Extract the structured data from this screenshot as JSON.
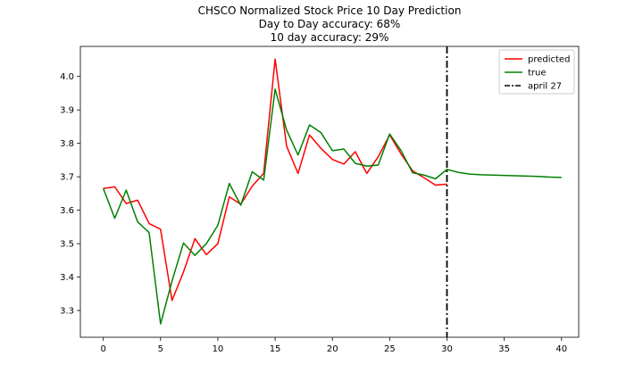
{
  "chart_data": {
    "type": "line",
    "title_lines": [
      "CHSCO Normalized Stock Price 10 Day Prediction",
      "Day to Day accuracy: 68%",
      "10 day accuracy: 29%"
    ],
    "xlabel": "",
    "ylabel": "",
    "xlim": [
      -2,
      41.5
    ],
    "ylim": [
      3.22,
      4.09
    ],
    "x_ticks": [
      0,
      5,
      10,
      15,
      20,
      25,
      30,
      35,
      40
    ],
    "y_ticks": [
      3.3,
      3.4,
      3.5,
      3.6,
      3.7,
      3.8,
      3.9,
      4.0
    ],
    "y_tick_labels": [
      "3.3",
      "3.4",
      "3.5",
      "3.6",
      "3.7",
      "3.8",
      "3.9",
      "4.0"
    ],
    "grid": false,
    "legend_position": "top-right",
    "series": [
      {
        "name": "predicted",
        "color": "#ff0000",
        "x": [
          0,
          1,
          2,
          3,
          4,
          5,
          6,
          7,
          8,
          9,
          10,
          11,
          12,
          13,
          14,
          15,
          16,
          17,
          18,
          19,
          20,
          21,
          22,
          23,
          24,
          25,
          26,
          27,
          28,
          29,
          30
        ],
        "y": [
          3.665,
          3.67,
          3.62,
          3.63,
          3.56,
          3.543,
          3.33,
          3.415,
          3.515,
          3.467,
          3.5,
          3.64,
          3.618,
          3.672,
          3.71,
          4.052,
          3.792,
          3.71,
          3.825,
          3.785,
          3.752,
          3.738,
          3.775,
          3.71,
          3.76,
          3.825,
          3.768,
          3.718,
          3.697,
          3.675,
          3.678
        ]
      },
      {
        "name": "true",
        "color": "#008000",
        "x": [
          0,
          1,
          2,
          3,
          4,
          5,
          6,
          7,
          8,
          9,
          10,
          11,
          12,
          13,
          14,
          15,
          16,
          17,
          18,
          19,
          20,
          21,
          22,
          23,
          24,
          25,
          26,
          27,
          28,
          29,
          30,
          31,
          32,
          33,
          34,
          35,
          36,
          37,
          38,
          39,
          40
        ],
        "y": [
          3.665,
          3.576,
          3.66,
          3.565,
          3.533,
          3.26,
          3.388,
          3.502,
          3.465,
          3.5,
          3.555,
          3.68,
          3.615,
          3.715,
          3.69,
          3.962,
          3.84,
          3.765,
          3.855,
          3.832,
          3.778,
          3.783,
          3.74,
          3.732,
          3.735,
          3.828,
          3.778,
          3.712,
          3.705,
          3.694,
          3.722,
          3.713,
          3.708,
          3.706,
          3.705,
          3.704,
          3.703,
          3.702,
          3.701,
          3.699,
          3.698
        ]
      }
    ],
    "vline": {
      "name": "april 27",
      "x": 30,
      "color": "#000000",
      "style": "dash-dot"
    }
  }
}
